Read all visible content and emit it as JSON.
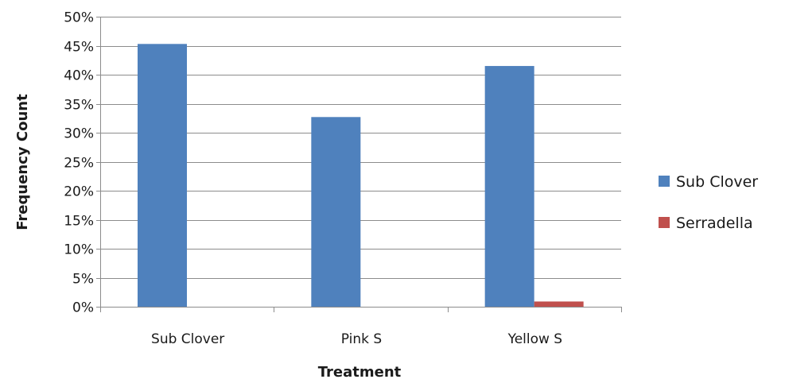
{
  "chart_data": {
    "type": "bar",
    "categories": [
      "Sub Clover",
      "Pink S",
      "Yellow S"
    ],
    "series": [
      {
        "name": "Sub Clover",
        "values": [
          45.3,
          32.7,
          41.5
        ],
        "color": "#4F81BD"
      },
      {
        "name": "Serradella",
        "values": [
          0,
          0,
          0.9
        ],
        "color": "#C0504D"
      }
    ],
    "xlabel": "Treatment",
    "ylabel": "Frequency Count",
    "ylim": [
      0,
      50
    ],
    "ytick_values": [
      0,
      5,
      10,
      15,
      20,
      25,
      30,
      35,
      40,
      45,
      50
    ],
    "ytick_labels": [
      "0%",
      "5%",
      "10%",
      "15%",
      "20%",
      "25%",
      "30%",
      "35%",
      "40%",
      "45%",
      "50%"
    ],
    "grid": true,
    "legend_position": "right"
  }
}
